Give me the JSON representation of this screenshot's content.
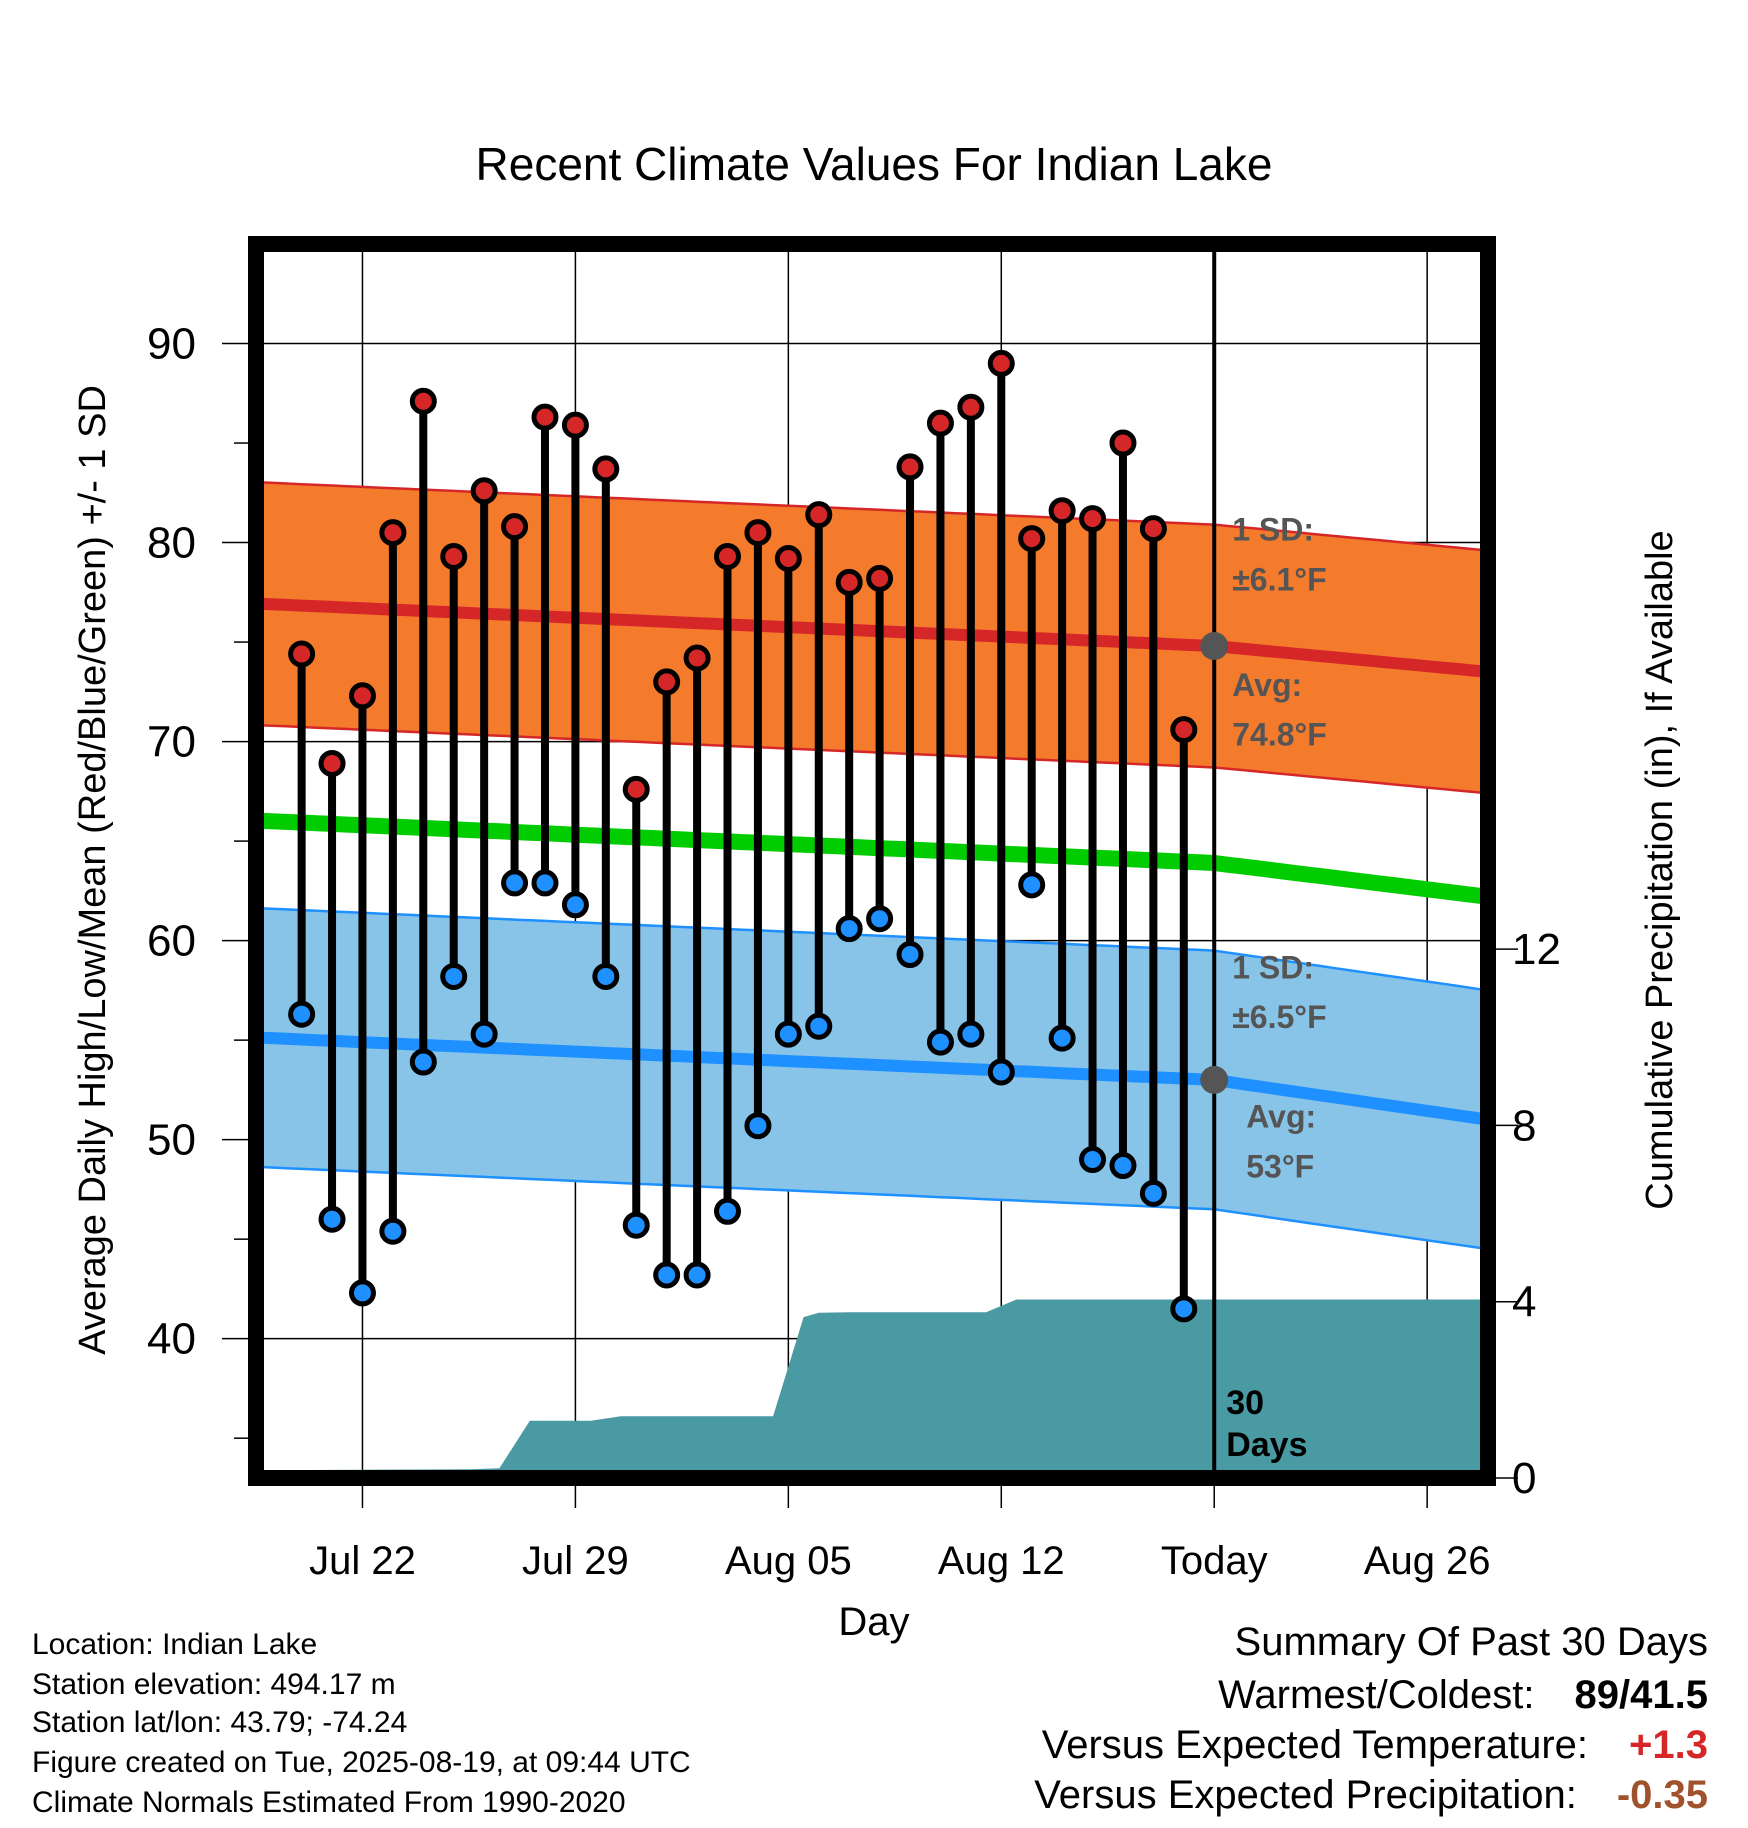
{
  "chart_data": {
    "type": "line",
    "title": "Recent Climate Values For Indian Lake",
    "xlabel": "Day",
    "ylabel": "Average Daily High/Low/Mean (Red/Blue/Green) +/- 1 SD",
    "y2label": "Cumulative Precipitation (in), If Available",
    "ylim": [
      33,
      95
    ],
    "y2lim": [
      0,
      28
    ],
    "y_ticks": [
      40,
      50,
      60,
      70,
      80,
      90
    ],
    "y2_ticks": [
      0,
      4,
      8,
      12
    ],
    "x_tick_labels": [
      "Jul 22",
      "Jul 29",
      "Aug 05",
      "Aug 12",
      "Today",
      "Aug 26"
    ],
    "x_tick_days": [
      3,
      10,
      17,
      24,
      31,
      38
    ],
    "x_range_days": [
      -0.5,
      40
    ],
    "today_day": 31,
    "today_label_line1": "30",
    "today_label_line2": "Days",
    "daily_highs": [
      74.4,
      68.9,
      72.3,
      80.5,
      87.1,
      79.3,
      82.6,
      80.8,
      86.3,
      85.9,
      83.7,
      67.6,
      73.0,
      74.2,
      79.3,
      80.5,
      79.2,
      81.4,
      78.0,
      78.2,
      83.8,
      86.0,
      86.8,
      89.0,
      80.2,
      81.6,
      81.2,
      85.0,
      80.7,
      70.6
    ],
    "daily_lows": [
      56.3,
      46.0,
      42.3,
      45.4,
      53.9,
      58.2,
      55.3,
      62.9,
      62.9,
      61.8,
      58.2,
      45.7,
      43.2,
      43.2,
      46.4,
      50.7,
      55.3,
      55.7,
      60.6,
      61.1,
      59.3,
      54.9,
      55.3,
      53.4,
      62.8,
      55.1,
      49.0,
      48.7,
      47.3,
      41.5
    ],
    "normal_high": {
      "start": 76.9,
      "today": 74.8,
      "end": 73.5,
      "sd": 6.1
    },
    "normal_low": {
      "start": 55.1,
      "today": 53.0,
      "end": 51.0,
      "sd": 6.5
    },
    "normal_mean": {
      "start": 66.0,
      "today": 63.9,
      "end": 62.2
    },
    "precip_cumulative": {
      "x": [
        0,
        0.5,
        6.5,
        7.5,
        8.5,
        10.5,
        11.5,
        16.5,
        17.5,
        18,
        19,
        23.5,
        24.5,
        40
      ],
      "y": [
        0,
        0.18,
        0.2,
        0.22,
        1.3,
        1.3,
        1.4,
        1.4,
        3.65,
        3.75,
        3.76,
        3.76,
        4.05,
        4.05
      ]
    },
    "annotations": {
      "high_sd_title": "1 SD:",
      "high_sd_value": "±6.1°F",
      "high_avg_title": "Avg:",
      "high_avg_value": "74.8°F",
      "low_sd_title": "1 SD:",
      "low_sd_value": "±6.5°F",
      "low_avg_title": "Avg:",
      "low_avg_value": "53°F"
    },
    "colors": {
      "high_band": "#f47a2c",
      "high_line": "#d62728",
      "low_band": "#87c4e8",
      "low_line": "#1e90ff",
      "mean_line": "#00cc00",
      "precip": "#4a9aa3",
      "high_dot": "#d62728",
      "low_dot": "#1e90ff",
      "annotation": "#555555"
    }
  },
  "station": {
    "location": "Location: Indian Lake",
    "elevation": "Station elevation: 494.17 m",
    "latlon": "Station lat/lon: 43.79; -74.24",
    "created": "Figure created on Tue, 2025-08-19, at 09:44 UTC",
    "normals": "Climate Normals Estimated From 1990-2020"
  },
  "summary": {
    "title": "Summary Of Past 30 Days",
    "warmest_label": "Warmest/Coldest:",
    "warmest_value": "89/41.5",
    "temp_label": "Versus Expected Temperature:",
    "temp_value": "+1.3",
    "precip_label": "Versus Expected Precipitation:",
    "precip_value": "-0.35"
  }
}
